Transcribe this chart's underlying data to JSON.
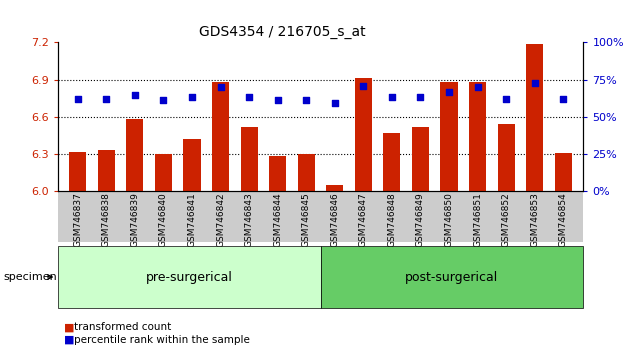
{
  "title": "GDS4354 / 216705_s_at",
  "samples": [
    "GSM746837",
    "GSM746838",
    "GSM746839",
    "GSM746840",
    "GSM746841",
    "GSM746842",
    "GSM746843",
    "GSM746844",
    "GSM746845",
    "GSM746846",
    "GSM746847",
    "GSM746848",
    "GSM746849",
    "GSM746850",
    "GSM746851",
    "GSM746852",
    "GSM746853",
    "GSM746854"
  ],
  "bar_values": [
    6.32,
    6.33,
    6.58,
    6.3,
    6.42,
    6.88,
    6.52,
    6.28,
    6.3,
    6.05,
    6.91,
    6.47,
    6.52,
    6.88,
    6.88,
    6.54,
    7.19,
    6.31
  ],
  "percentile_values": [
    62,
    62,
    65,
    61,
    63,
    70,
    63,
    61,
    61,
    59,
    71,
    63,
    63,
    67,
    70,
    62,
    73,
    62
  ],
  "bar_bottom": 6.0,
  "ylim_left": [
    6.0,
    7.2
  ],
  "ylim_right": [
    0,
    100
  ],
  "yticks_left": [
    6.0,
    6.3,
    6.6,
    6.9,
    7.2
  ],
  "yticks_right": [
    0,
    25,
    50,
    75,
    100
  ],
  "ytick_labels_right": [
    "0%",
    "25%",
    "50%",
    "75%",
    "100%"
  ],
  "bar_color": "#cc2200",
  "dot_color": "#0000cc",
  "pre_surgical_count": 9,
  "pre_surgical_label": "pre-surgerical",
  "post_surgical_label": "post-surgerical",
  "group_bg_light": "#ccffcc",
  "group_bg_dark": "#66cc66",
  "specimen_label": "specimen",
  "legend_bar_label": "transformed count",
  "legend_dot_label": "percentile rank within the sample",
  "axis_label_color_left": "#cc2200",
  "axis_label_color_right": "#0000cc"
}
